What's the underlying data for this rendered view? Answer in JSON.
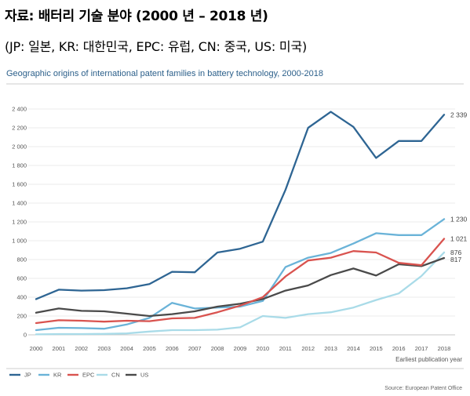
{
  "heading": "자료: 배터리 기술 분야 (2000 년 – 2018 년)",
  "subheading": "(JP: 일본, KR: 대한민국, EPC: 유럽, CN: 중국, US: 미국)",
  "chart_data": {
    "type": "line",
    "title": "Geographic origins of international patent families in battery technology, 2000-2018",
    "xlabel": "Earliest publication year",
    "ylabel": "",
    "source": "Source: European Patent Office",
    "x": [
      "2000",
      "2001",
      "2002",
      "2003",
      "2004",
      "2005",
      "2006",
      "2007",
      "2008",
      "2009",
      "2010",
      "2011",
      "2012",
      "2013",
      "2014",
      "2015",
      "2016",
      "2017",
      "2018"
    ],
    "ylim": [
      0,
      2400
    ],
    "yticks": [
      0,
      200,
      400,
      600,
      800,
      1000,
      1200,
      1400,
      1600,
      1800,
      2000,
      2200,
      2400
    ],
    "ytick_labels": [
      "0",
      "200",
      "400",
      "600",
      "800",
      "1 000",
      "1 200",
      "1 400",
      "1 600",
      "1 800",
      "2 000",
      "2 200",
      "2 400"
    ],
    "grid": true,
    "legend_position": "bottom-left",
    "series": [
      {
        "name": "JP",
        "color": "#2e6593",
        "end_label": "2 339",
        "values": [
          380,
          480,
          470,
          475,
          495,
          540,
          670,
          665,
          875,
          915,
          990,
          1540,
          2200,
          2370,
          2210,
          1880,
          2060,
          2060,
          2339
        ]
      },
      {
        "name": "KR",
        "color": "#6ab3d8",
        "end_label": "1 230",
        "values": [
          50,
          75,
          72,
          65,
          110,
          180,
          340,
          280,
          290,
          300,
          360,
          720,
          820,
          870,
          970,
          1080,
          1060,
          1060,
          1230
        ]
      },
      {
        "name": "EPC",
        "color": "#d9534f",
        "end_label": "1 021",
        "values": [
          125,
          155,
          150,
          140,
          150,
          145,
          175,
          180,
          240,
          310,
          400,
          620,
          790,
          820,
          890,
          875,
          765,
          740,
          1021
        ]
      },
      {
        "name": "CN",
        "color": "#a9dbe8",
        "end_label": "876",
        "values": [
          5,
          8,
          8,
          10,
          15,
          35,
          50,
          50,
          55,
          80,
          200,
          180,
          220,
          240,
          290,
          370,
          440,
          625,
          876
        ]
      },
      {
        "name": "US",
        "color": "#4a4a4a",
        "end_label": "817",
        "values": [
          235,
          280,
          255,
          250,
          225,
          200,
          220,
          250,
          300,
          330,
          380,
          470,
          525,
          635,
          705,
          630,
          750,
          730,
          817
        ]
      }
    ]
  }
}
